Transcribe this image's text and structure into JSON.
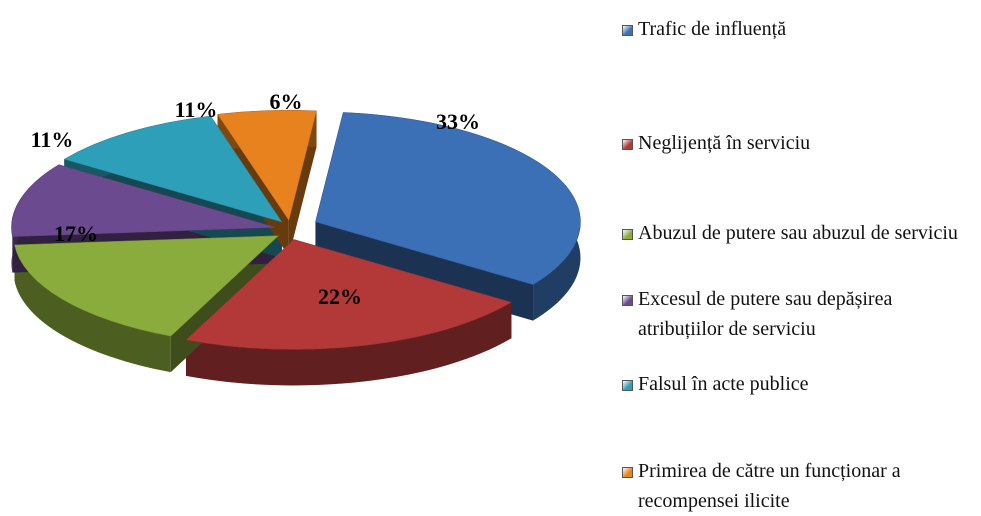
{
  "chart_data": {
    "type": "pie",
    "categories": [
      "Trafic de influență",
      "Neglijență în serviciu",
      "Abuzul de putere sau abuzul de serviciu",
      "Excesul de putere sau depășirea atribuțiilor de serviciu",
      "Falsul în acte publice",
      "Primirea de către un funcționar a recompensei ilicite"
    ],
    "values": [
      33,
      22,
      17,
      11,
      11,
      6
    ],
    "value_labels": [
      "33%",
      "22%",
      "17%",
      "11%",
      "11%",
      "6%"
    ],
    "colors": [
      "#3b6fb6",
      "#b33838",
      "#8aac3c",
      "#6b4a90",
      "#2e9fb8",
      "#e8821e"
    ],
    "legend": "right"
  }
}
